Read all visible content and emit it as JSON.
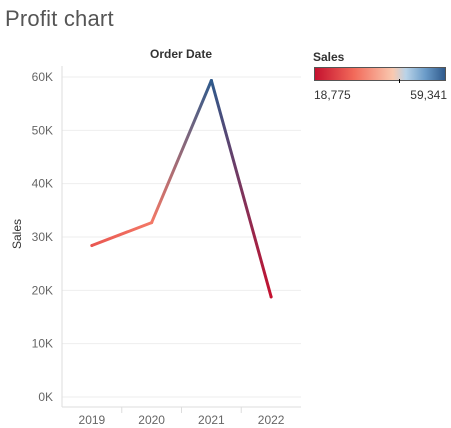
{
  "page": {
    "title": "Profit chart"
  },
  "legend": {
    "title": "Sales",
    "min_label": "18,775",
    "max_label": "59,341",
    "min_value": 18775,
    "max_value": 59341,
    "center_value": 45000,
    "colors": [
      "#c5112f",
      "#f26a5a",
      "#f9c9b0",
      "#b9d3e8",
      "#6a9bc8",
      "#2f5a8c"
    ]
  },
  "chart_data": {
    "type": "line",
    "title": "Order Date",
    "xlabel": "",
    "ylabel": "Sales",
    "categories": [
      "2019",
      "2020",
      "2021",
      "2022"
    ],
    "series": [
      {
        "values": [
          28400,
          32700,
          59341,
          18775
        ]
      }
    ],
    "ylim": [
      0,
      65000
    ],
    "yticks": [
      0,
      10000,
      20000,
      30000,
      40000,
      50000,
      60000
    ],
    "ytick_labels": [
      "0K",
      "10K",
      "20K",
      "30K",
      "40K",
      "50K",
      "60K"
    ],
    "grid": true,
    "color_encoding": "Sales"
  }
}
